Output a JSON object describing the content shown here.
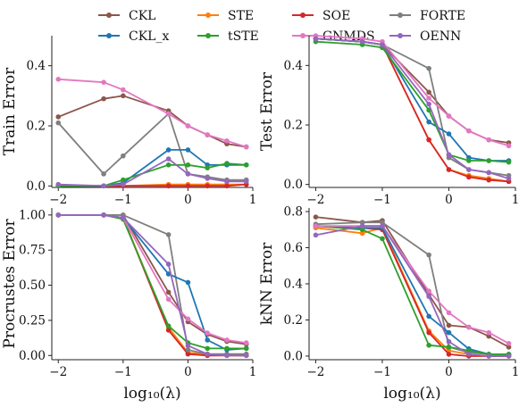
{
  "legend": [
    {
      "name": "CKL",
      "color": "#8c564b"
    },
    {
      "name": "STE",
      "color": "#ff7f0e"
    },
    {
      "name": "SOE",
      "color": "#d62728"
    },
    {
      "name": "FORTE",
      "color": "#7f7f7f"
    },
    {
      "name": "CKL_x",
      "color": "#1f77b4"
    },
    {
      "name": "tSTE",
      "color": "#2ca02c"
    },
    {
      "name": "GNMDS",
      "color": "#e377c2"
    },
    {
      "name": "OENN",
      "color": "#9467bd"
    }
  ],
  "chart_data": [
    {
      "type": "line",
      "ylabel": "Train Error",
      "xlabel": "",
      "xlim": [
        -2.1,
        1.0
      ],
      "ylim": [
        -0.005,
        0.5
      ],
      "xticks": [
        -2,
        -1,
        0,
        1
      ],
      "xtick_labels": [
        "−2",
        "−1",
        "0",
        "1"
      ],
      "yticks": [
        0.0,
        0.2,
        0.4
      ],
      "ytick_labels": [
        "0.0",
        "0.2",
        "0.4"
      ],
      "series": [
        {
          "name": "CKL",
          "color": "#8c564b",
          "x": [
            -2,
            -1.3,
            -1,
            -0.3,
            0,
            0.3,
            0.6,
            0.9
          ],
          "y": [
            0.23,
            0.29,
            0.3,
            0.25,
            0.2,
            0.17,
            0.14,
            0.13
          ]
        },
        {
          "name": "STE",
          "color": "#ff7f0e",
          "x": [
            -2,
            -1,
            -0.3,
            0,
            0.3,
            0.6,
            0.9
          ],
          "y": [
            0.0,
            0.0,
            0.005,
            0.005,
            0.005,
            0.005,
            0.005
          ]
        },
        {
          "name": "SOE",
          "color": "#d62728",
          "x": [
            -2,
            -1.3,
            -1,
            -0.3,
            0,
            0.3,
            0.6,
            0.9
          ],
          "y": [
            0.0,
            0.0,
            0.0,
            0.0,
            0.0,
            0.0,
            0.0,
            0.005
          ]
        },
        {
          "name": "FORTE",
          "color": "#7f7f7f",
          "x": [
            -2,
            -1.3,
            -1,
            -0.3,
            0,
            0.3,
            0.6,
            0.9
          ],
          "y": [
            0.21,
            0.04,
            0.1,
            0.24,
            0.04,
            0.03,
            0.02,
            0.02
          ]
        },
        {
          "name": "CKL_x",
          "color": "#1f77b4",
          "x": [
            -2,
            -1.3,
            -1,
            -0.3,
            0,
            0.3,
            0.6,
            0.9
          ],
          "y": [
            0.0,
            0.0,
            0.01,
            0.12,
            0.12,
            0.07,
            0.07,
            0.07
          ]
        },
        {
          "name": "tSTE",
          "color": "#2ca02c",
          "x": [
            -2,
            -1.3,
            -1,
            -0.3,
            0,
            0.3,
            0.6,
            0.9
          ],
          "y": [
            0.0,
            0.0,
            0.02,
            0.07,
            0.07,
            0.06,
            0.075,
            0.07
          ]
        },
        {
          "name": "GNMDS",
          "color": "#e377c2",
          "x": [
            -2,
            -1.3,
            -1,
            -0.3,
            0,
            0.3,
            0.6,
            0.9
          ],
          "y": [
            0.355,
            0.345,
            0.32,
            0.24,
            0.2,
            0.17,
            0.15,
            0.13
          ]
        },
        {
          "name": "OENN",
          "color": "#9467bd",
          "x": [
            -2,
            -1.3,
            -1,
            -0.3,
            0,
            0.3,
            0.6,
            0.9
          ],
          "y": [
            0.005,
            0.0,
            0.005,
            0.09,
            0.04,
            0.025,
            0.015,
            0.015
          ]
        }
      ]
    },
    {
      "type": "line",
      "ylabel": "Test Error",
      "xlabel": "",
      "xlim": [
        -2.1,
        1.0
      ],
      "ylim": [
        -0.01,
        0.5
      ],
      "xticks": [
        -2,
        -1,
        0,
        1
      ],
      "xtick_labels": [
        "−2",
        "−1",
        "0",
        "1"
      ],
      "yticks": [
        0.0,
        0.2,
        0.4
      ],
      "ytick_labels": [
        "0.0",
        "0.2",
        "0.4"
      ],
      "series": [
        {
          "name": "CKL",
          "color": "#8c564b",
          "x": [
            -2,
            -1.3,
            -1,
            -0.3,
            0,
            0.3,
            0.6,
            0.9
          ],
          "y": [
            0.49,
            0.48,
            0.47,
            0.31,
            0.23,
            0.18,
            0.15,
            0.14
          ]
        },
        {
          "name": "STE",
          "color": "#ff7f0e",
          "x": [
            -2,
            -1.3,
            -1,
            -0.3,
            0,
            0.3,
            0.6,
            0.9
          ],
          "y": [
            0.49,
            0.48,
            0.47,
            0.15,
            0.05,
            0.03,
            0.02,
            0.01
          ]
        },
        {
          "name": "SOE",
          "color": "#d62728",
          "x": [
            -2,
            -1.3,
            -1,
            -0.3,
            0,
            0.3,
            0.6,
            0.9
          ],
          "y": [
            0.49,
            0.48,
            0.47,
            0.15,
            0.05,
            0.025,
            0.015,
            0.01
          ]
        },
        {
          "name": "FORTE",
          "color": "#7f7f7f",
          "x": [
            -2,
            -1.3,
            -1,
            -0.3,
            0,
            0.3,
            0.6,
            0.9
          ],
          "y": [
            0.49,
            0.48,
            0.47,
            0.39,
            0.09,
            0.05,
            0.04,
            0.03
          ]
        },
        {
          "name": "CKL_x",
          "color": "#1f77b4",
          "x": [
            -2,
            -1.3,
            -1,
            -0.3,
            0,
            0.3,
            0.6,
            0.9
          ],
          "y": [
            0.49,
            0.48,
            0.47,
            0.21,
            0.17,
            0.09,
            0.08,
            0.08
          ]
        },
        {
          "name": "tSTE",
          "color": "#2ca02c",
          "x": [
            -2,
            -1.3,
            -1,
            -0.3,
            0,
            0.3,
            0.6,
            0.9
          ],
          "y": [
            0.48,
            0.47,
            0.46,
            0.25,
            0.1,
            0.08,
            0.08,
            0.075
          ]
        },
        {
          "name": "GNMDS",
          "color": "#e377c2",
          "x": [
            -2,
            -1.3,
            -1,
            -0.3,
            0,
            0.3,
            0.6,
            0.9
          ],
          "y": [
            0.5,
            0.49,
            0.48,
            0.29,
            0.23,
            0.18,
            0.15,
            0.13
          ]
        },
        {
          "name": "OENN",
          "color": "#9467bd",
          "x": [
            -2,
            -1.3,
            -1,
            -0.3,
            0,
            0.3,
            0.6,
            0.9
          ],
          "y": [
            0.49,
            0.48,
            0.47,
            0.27,
            0.1,
            0.05,
            0.04,
            0.02
          ]
        }
      ]
    },
    {
      "type": "line",
      "ylabel": "Procrustes Error",
      "xlabel": "log₁₀(λ)",
      "xlim": [
        -2.1,
        1.0
      ],
      "ylim": [
        -0.03,
        1.05
      ],
      "xticks": [
        -2,
        -1,
        0,
        1
      ],
      "xtick_labels": [
        "−2",
        "−1",
        "0",
        "1"
      ],
      "yticks": [
        0.0,
        0.25,
        0.5,
        0.75,
        1.0
      ],
      "ytick_labels": [
        "0.00",
        "0.25",
        "0.50",
        "0.75",
        "1.00"
      ],
      "series": [
        {
          "name": "CKL",
          "color": "#8c564b",
          "x": [
            -2,
            -1.3,
            -1,
            -0.3,
            0,
            0.3,
            0.6,
            0.9
          ],
          "y": [
            1.0,
            1.0,
            1.0,
            0.45,
            0.24,
            0.15,
            0.1,
            0.08
          ]
        },
        {
          "name": "STE",
          "color": "#ff7f0e",
          "x": [
            -2,
            -1.3,
            -1,
            -0.3,
            0,
            0.3,
            0.6,
            0.9
          ],
          "y": [
            1.0,
            1.0,
            0.98,
            0.2,
            0.02,
            0.01,
            0.0,
            0.0
          ]
        },
        {
          "name": "SOE",
          "color": "#d62728",
          "x": [
            -2,
            -1.3,
            -1,
            -0.3,
            0,
            0.3,
            0.6,
            0.9
          ],
          "y": [
            1.0,
            1.0,
            0.98,
            0.18,
            0.01,
            0.0,
            0.0,
            0.0
          ]
        },
        {
          "name": "FORTE",
          "color": "#7f7f7f",
          "x": [
            -2,
            -1.3,
            -1,
            -0.3,
            0,
            0.3,
            0.6,
            0.9
          ],
          "y": [
            1.0,
            1.0,
            1.0,
            0.86,
            0.04,
            0.01,
            0.01,
            0.01
          ]
        },
        {
          "name": "CKL_x",
          "color": "#1f77b4",
          "x": [
            -2,
            -1.3,
            -1,
            -0.3,
            0,
            0.3,
            0.6,
            0.9
          ],
          "y": [
            1.0,
            1.0,
            0.98,
            0.58,
            0.52,
            0.11,
            0.04,
            0.05
          ]
        },
        {
          "name": "tSTE",
          "color": "#2ca02c",
          "x": [
            -2,
            -1.3,
            -1,
            -0.3,
            0,
            0.3,
            0.6,
            0.9
          ],
          "y": [
            1.0,
            1.0,
            0.97,
            0.21,
            0.09,
            0.05,
            0.05,
            0.05
          ]
        },
        {
          "name": "GNMDS",
          "color": "#e377c2",
          "x": [
            -2,
            -1.3,
            -1,
            -0.3,
            0,
            0.3,
            0.6,
            0.9
          ],
          "y": [
            1.0,
            1.0,
            0.98,
            0.4,
            0.26,
            0.16,
            0.11,
            0.09
          ]
        },
        {
          "name": "OENN",
          "color": "#9467bd",
          "x": [
            -2,
            -1.3,
            -1,
            -0.3,
            0,
            0.3,
            0.6,
            0.9
          ],
          "y": [
            1.0,
            1.0,
            0.98,
            0.65,
            0.07,
            0.01,
            0.0,
            0.0
          ]
        }
      ]
    },
    {
      "type": "line",
      "ylabel": "kNN Error",
      "xlabel": "log₁₀(λ)",
      "xlim": [
        -2.1,
        1.0
      ],
      "ylim": [
        -0.02,
        0.82
      ],
      "xticks": [
        -2,
        -1,
        0,
        1
      ],
      "xtick_labels": [
        "−2",
        "−1",
        "0",
        "1"
      ],
      "yticks": [
        0.0,
        0.2,
        0.4,
        0.6,
        0.8
      ],
      "ytick_labels": [
        "0.0",
        "0.2",
        "0.4",
        "0.6",
        "0.8"
      ],
      "series": [
        {
          "name": "CKL",
          "color": "#8c564b",
          "x": [
            -2,
            -1.3,
            -1,
            -0.3,
            0,
            0.3,
            0.6,
            0.9
          ],
          "y": [
            0.77,
            0.74,
            0.75,
            0.34,
            0.17,
            0.16,
            0.11,
            0.05
          ]
        },
        {
          "name": "STE",
          "color": "#ff7f0e",
          "x": [
            -2,
            -1.3,
            -1,
            -0.3,
            0,
            0.3,
            0.6,
            0.9
          ],
          "y": [
            0.71,
            0.68,
            0.71,
            0.14,
            0.03,
            0.01,
            0.0,
            0.0
          ]
        },
        {
          "name": "SOE",
          "color": "#d62728",
          "x": [
            -2,
            -1.3,
            -1,
            -0.3,
            0,
            0.3,
            0.6,
            0.9
          ],
          "y": [
            0.72,
            0.71,
            0.7,
            0.13,
            0.01,
            0.0,
            0.0,
            0.0
          ]
        },
        {
          "name": "FORTE",
          "color": "#7f7f7f",
          "x": [
            -2,
            -1.3,
            -1,
            -0.3,
            0,
            0.3,
            0.6,
            0.9
          ],
          "y": [
            0.73,
            0.74,
            0.74,
            0.56,
            0.05,
            0.02,
            0.01,
            0.01
          ]
        },
        {
          "name": "CKL_x",
          "color": "#1f77b4",
          "x": [
            -2,
            -1.3,
            -1,
            -0.3,
            0,
            0.3,
            0.6,
            0.9
          ],
          "y": [
            0.72,
            0.71,
            0.71,
            0.22,
            0.13,
            0.04,
            0.01,
            0.01
          ]
        },
        {
          "name": "tSTE",
          "color": "#2ca02c",
          "x": [
            -2,
            -1.3,
            -1,
            -0.3,
            0,
            0.3,
            0.6,
            0.9
          ],
          "y": [
            0.72,
            0.7,
            0.65,
            0.06,
            0.05,
            0.03,
            0.01,
            0.01
          ]
        },
        {
          "name": "GNMDS",
          "color": "#e377c2",
          "x": [
            -2,
            -1.3,
            -1,
            -0.3,
            0,
            0.3,
            0.6,
            0.9
          ],
          "y": [
            0.72,
            0.72,
            0.72,
            0.36,
            0.24,
            0.16,
            0.13,
            0.07
          ]
        },
        {
          "name": "OENN",
          "color": "#9467bd",
          "x": [
            -2,
            -1.3,
            -1,
            -0.3,
            0,
            0.3,
            0.6,
            0.9
          ],
          "y": [
            0.67,
            0.72,
            0.72,
            0.33,
            0.08,
            0.01,
            0.0,
            0.0
          ]
        }
      ]
    }
  ]
}
